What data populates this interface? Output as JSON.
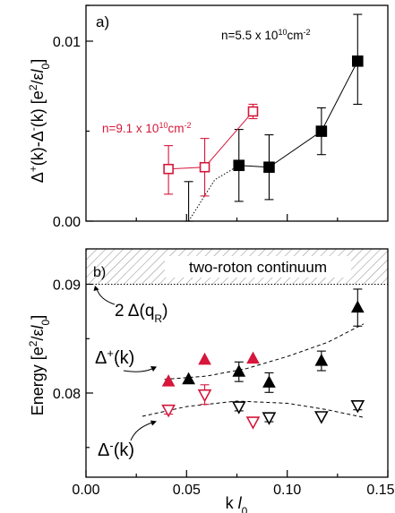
{
  "chart_data": [
    {
      "panel": "a)",
      "type": "scatter",
      "ylabel": "Δ⁺(k)-Δ⁻(k) [e²/εl₀]",
      "xlim": [
        0.0,
        0.15
      ],
      "ylim": [
        0.0,
        0.012
      ],
      "yticks": [
        0.0,
        0.01
      ],
      "ytick_labels": [
        "0.00",
        "0.01"
      ],
      "series": [
        {
          "name": "n=5.5 x 10¹⁰cm⁻²",
          "color": "#000000",
          "marker": "filled-square",
          "points": [
            {
              "x": 0.076,
              "y": 0.0031,
              "err_lo": 0.002,
              "err_hi": 0.002
            },
            {
              "x": 0.091,
              "y": 0.003,
              "err_lo": 0.0018,
              "err_hi": 0.0018
            },
            {
              "x": 0.117,
              "y": 0.005,
              "err_lo": 0.0013,
              "err_hi": 0.0013
            },
            {
              "x": 0.135,
              "y": 0.0089,
              "err_lo": 0.0024,
              "err_hi": 0.0026
            }
          ],
          "extrapolation": [
            [
              0.051,
              0.0
            ],
            [
              0.064,
              0.0023
            ],
            [
              0.076,
              0.0031
            ]
          ]
        },
        {
          "name": "n=9.1 x 10¹⁰cm⁻²",
          "color": "#d6163a",
          "marker": "open-square",
          "points": [
            {
              "x": 0.041,
              "y": 0.0029,
              "err_lo": 0.0014,
              "err_hi": 0.0013
            },
            {
              "x": 0.059,
              "y": 0.003,
              "err_lo": 0.0016,
              "err_hi": 0.0016
            },
            {
              "x": 0.083,
              "y": 0.0061,
              "err_lo": 0.0004,
              "err_hi": 0.0004
            }
          ]
        }
      ],
      "extra_errorbar": {
        "x": 0.051,
        "lo": 0.0,
        "hi": 0.0022
      }
    },
    {
      "panel": "b)",
      "type": "scatter",
      "xlabel": "k l₀",
      "ylabel": "Energy [e²/εl₀]",
      "xlim": [
        0.0,
        0.15
      ],
      "ylim": [
        0.0725,
        0.0935
      ],
      "xticks": [
        0.0,
        0.05,
        0.1,
        0.15
      ],
      "xtick_labels": [
        "0.00",
        "0.05",
        "0.10",
        "0.15"
      ],
      "yticks": [
        0.08,
        0.09
      ],
      "ytick_labels": [
        "0.08",
        "0.09"
      ],
      "continuum": {
        "label": "two-roton continuum",
        "from": 0.09,
        "to": 0.0935
      },
      "continuum_edge_label": "2 Δ(q_R)",
      "branch_labels": [
        "Δ⁺(k)",
        "Δ⁻(k)"
      ],
      "series": [
        {
          "name": "Δ⁺ 5.5",
          "color": "#000000",
          "marker": "filled-triangle-up",
          "points": [
            {
              "x": 0.051,
              "y": 0.0815,
              "err_lo": 0.0,
              "err_hi": 0.0
            },
            {
              "x": 0.076,
              "y": 0.0822,
              "err_lo": 0.0009,
              "err_hi": 0.0009
            },
            {
              "x": 0.091,
              "y": 0.0812,
              "err_lo": 0.0009,
              "err_hi": 0.0009
            },
            {
              "x": 0.117,
              "y": 0.0832,
              "err_lo": 0.0009,
              "err_hi": 0.0009
            },
            {
              "x": 0.135,
              "y": 0.0881,
              "err_lo": 0.0017,
              "err_hi": 0.0017
            }
          ]
        },
        {
          "name": "Δ⁺ 9.1",
          "color": "#d6163a",
          "marker": "filled-triangle-up",
          "points": [
            {
              "x": 0.041,
              "y": 0.0813,
              "err_lo": 0.0,
              "err_hi": 0.0
            },
            {
              "x": 0.059,
              "y": 0.0833,
              "err_lo": 0.0,
              "err_hi": 0.0
            },
            {
              "x": 0.083,
              "y": 0.0834,
              "err_lo": 0.0,
              "err_hi": 0.0
            }
          ]
        },
        {
          "name": "Δ⁻ 5.5",
          "color": "#000000",
          "marker": "open-triangle-down",
          "points": [
            {
              "x": 0.076,
              "y": 0.079,
              "err_lo": 0.0004,
              "err_hi": 0.0004
            },
            {
              "x": 0.091,
              "y": 0.078,
              "err_lo": 0.0004,
              "err_hi": 0.0004
            },
            {
              "x": 0.117,
              "y": 0.0781,
              "err_lo": 0.0,
              "err_hi": 0.0
            },
            {
              "x": 0.135,
              "y": 0.0791,
              "err_lo": 0.0004,
              "err_hi": 0.0004
            }
          ]
        },
        {
          "name": "Δ⁻ 9.1",
          "color": "#d6163a",
          "marker": "open-triangle-down",
          "points": [
            {
              "x": 0.041,
              "y": 0.0787,
              "err_lo": 0.0004,
              "err_hi": 0.0004
            },
            {
              "x": 0.059,
              "y": 0.0801,
              "err_lo": 0.0009,
              "err_hi": 0.0009
            },
            {
              "x": 0.083,
              "y": 0.0776,
              "err_lo": 0.0,
              "err_hi": 0.0
            }
          ]
        }
      ],
      "fits": [
        {
          "name": "Δ⁺ fit",
          "points": [
            [
              0.039,
              0.0815
            ],
            [
              0.06,
              0.0818
            ],
            [
              0.08,
              0.0825
            ],
            [
              0.1,
              0.0836
            ],
            [
              0.12,
              0.0849
            ],
            [
              0.138,
              0.0866
            ]
          ]
        },
        {
          "name": "Δ⁻ fit",
          "points": [
            [
              0.028,
              0.0781
            ],
            [
              0.05,
              0.079
            ],
            [
              0.075,
              0.0795
            ],
            [
              0.1,
              0.0793
            ],
            [
              0.12,
              0.0787
            ],
            [
              0.138,
              0.078
            ]
          ]
        }
      ]
    }
  ]
}
